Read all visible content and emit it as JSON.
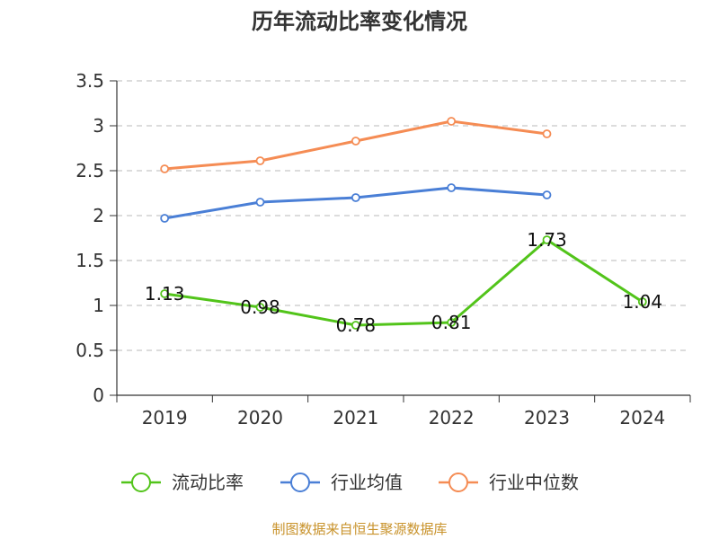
{
  "chart_data": {
    "type": "line",
    "title": "历年流动比率变化情况",
    "categories": [
      "2019",
      "2020",
      "2021",
      "2022",
      "2023",
      "2024"
    ],
    "ylim": [
      0,
      3.5
    ],
    "yticks": [
      "0",
      "0.5",
      "1",
      "1.5",
      "2",
      "2.5",
      "3",
      "3.5"
    ],
    "grid": true,
    "legend_position": "bottom",
    "series": [
      {
        "name": "流动比率",
        "color": "#52c41a",
        "values": [
          1.13,
          0.98,
          0.78,
          0.81,
          1.73,
          1.04
        ],
        "labels": [
          "1.13",
          "0.98",
          "0.78",
          "0.81",
          "1.73",
          "1.04"
        ]
      },
      {
        "name": "行业均值",
        "color": "#4a7fd6",
        "values": [
          1.97,
          2.15,
          2.2,
          2.31,
          2.23,
          null
        ]
      },
      {
        "name": "行业中位数",
        "color": "#f58c54",
        "values": [
          2.52,
          2.61,
          2.83,
          3.05,
          2.91,
          null
        ]
      }
    ]
  },
  "source_text": "制图数据来自恒生聚源数据库"
}
